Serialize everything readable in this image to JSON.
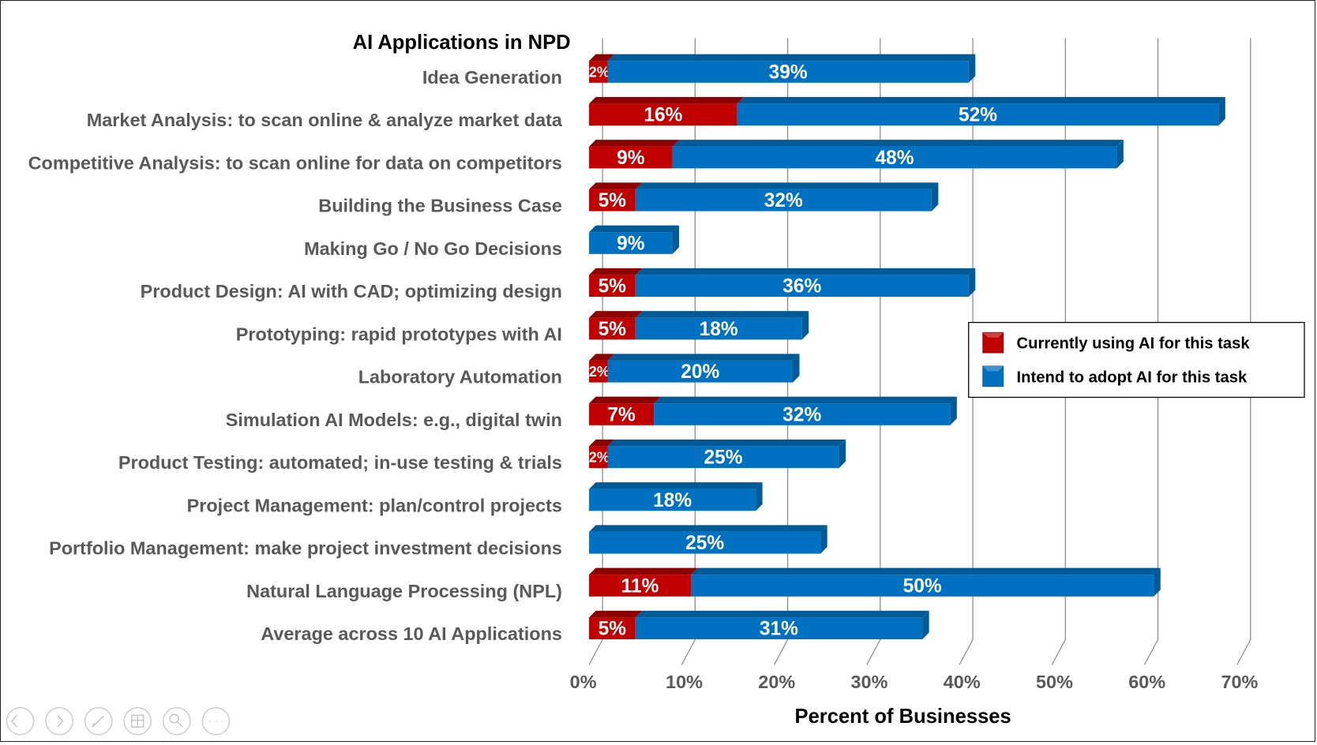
{
  "chart_data": {
    "type": "bar",
    "orientation": "horizontal",
    "stacked": true,
    "title": "AI Applications in NPD",
    "xlabel": "Percent of Businesses",
    "ylabel": "",
    "xlim": [
      0,
      70
    ],
    "xticks": [
      "0%",
      "10%",
      "20%",
      "30%",
      "40%",
      "50%",
      "60%",
      "70%"
    ],
    "grid": true,
    "legend_position": "right",
    "categories": [
      "Idea Generation",
      "Market Analysis: to scan online & analyze market data",
      "Competitive Analysis: to scan online for data on competitors",
      "Building the Business Case",
      "Making Go / No Go Decisions",
      "Product Design: AI with CAD; optimizing design",
      "Prototyping: rapid prototypes with AI",
      "Laboratory Automation",
      "Simulation AI Models: e.g., digital twin",
      "Product Testing: automated; in-use testing & trials",
      "Project Management: plan/control projects",
      "Portfolio Management: make project investment decisions",
      "Natural Language Processing (NPL)",
      "Average across 10 AI Applications"
    ],
    "series": [
      {
        "name": "Currently using AI for this task",
        "color": "#c00000",
        "values": [
          2,
          16,
          9,
          5,
          0,
          5,
          5,
          2,
          7,
          2,
          0,
          0,
          11,
          5
        ]
      },
      {
        "name": "Intend to adopt AI for this task",
        "color": "#0070c0",
        "values": [
          39,
          52,
          48,
          32,
          9,
          36,
          18,
          20,
          32,
          25,
          18,
          25,
          50,
          31
        ]
      }
    ]
  },
  "nav_icons": [
    "previous-icon",
    "next-icon",
    "pen-icon",
    "slides-icon",
    "zoom-icon",
    "more-icon"
  ]
}
